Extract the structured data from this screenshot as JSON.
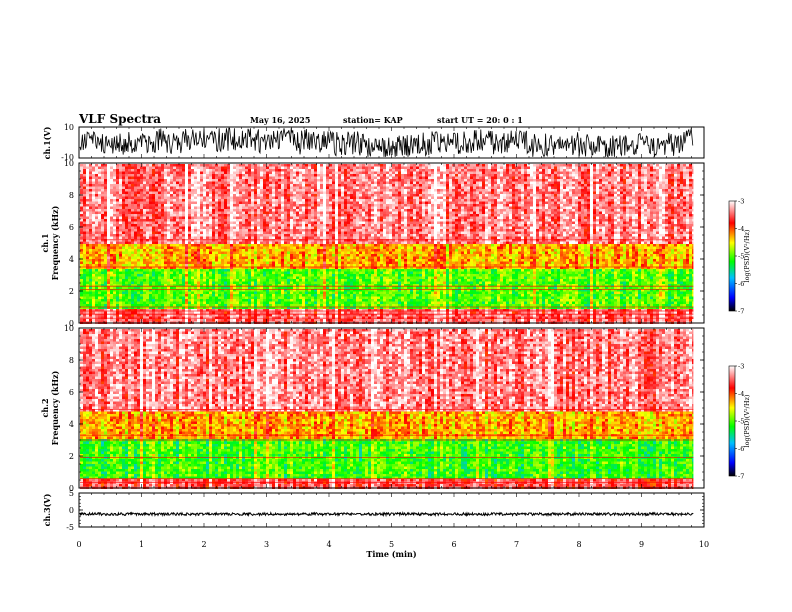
{
  "header": {
    "title": "VLF Spectra",
    "date": "May 16, 2025",
    "station": "station= KAP",
    "start": "start  UT =   20: 0  : 1"
  },
  "chart_data": [
    {
      "type": "line",
      "name": "ch1-waveform",
      "ylabel": "ch.1(V)",
      "ylim": [
        -10,
        10
      ],
      "y_ticks": [
        10,
        -10
      ],
      "x_range_min": [
        0,
        9.83
      ],
      "summary": "dense noisy waveform spanning roughly -9 to +9 V"
    },
    {
      "type": "heatmap",
      "name": "ch1-spectrogram",
      "ylabel_line1": "ch.1",
      "ylabel_line2": "Frequency (kHz)",
      "ylim": [
        0,
        10
      ],
      "y_ticks": [
        "0",
        "2",
        "4",
        "6",
        "8",
        "10"
      ],
      "x_range_min": [
        0,
        9.83
      ],
      "colorbar": {
        "label": "log(PSD)(V²/Hz)",
        "ticks": [
          "-3",
          "-4",
          "-5",
          "-6",
          "-7"
        ],
        "range": [
          -7,
          -3
        ]
      },
      "bands_khz": [
        {
          "from": 0,
          "to": 1.0,
          "level": -3.5
        },
        {
          "from": 1.0,
          "to": 3.5,
          "level": -5.0
        },
        {
          "from": 3.5,
          "to": 5.0,
          "level": -4.3
        },
        {
          "from": 5.0,
          "to": 10,
          "level": -3.4
        }
      ],
      "lines_khz": [
        0.3,
        0.55,
        0.75,
        1.0,
        2.1,
        2.3,
        3.5,
        5.2
      ]
    },
    {
      "type": "heatmap",
      "name": "ch2-spectrogram",
      "ylabel_line1": "ch.2",
      "ylabel_line2": "Frequency (kHz)",
      "ylim": [
        0,
        10
      ],
      "y_ticks": [
        "0",
        "2",
        "4",
        "6",
        "8",
        "10"
      ],
      "x_range_min": [
        0,
        9.83
      ],
      "colorbar": {
        "label": "log(PSD)(V²/Hz)",
        "ticks": [
          "-3",
          "-4",
          "-5",
          "-6",
          "-7"
        ],
        "range": [
          -7,
          -3
        ]
      },
      "bands_khz": [
        {
          "from": 0,
          "to": 0.6,
          "level": -3.6
        },
        {
          "from": 0.6,
          "to": 3.2,
          "level": -5.1
        },
        {
          "from": 3.2,
          "to": 4.8,
          "level": -4.3
        },
        {
          "from": 4.8,
          "to": 10,
          "level": -3.4
        }
      ],
      "lines_khz": [
        0.35,
        0.6,
        1.9,
        3.0,
        3.3,
        4.9
      ]
    },
    {
      "type": "line",
      "name": "ch3-waveform",
      "ylabel": "ch.3(V)",
      "ylim": [
        -5,
        5
      ],
      "y_ticks": [
        5,
        0,
        -5
      ],
      "x_range_min": [
        0,
        9.83
      ],
      "level": -1.2,
      "amplitude": 0.4
    }
  ],
  "xaxis": {
    "label": "Time (min)",
    "range": [
      0,
      10
    ],
    "ticks": [
      "0",
      "1",
      "2",
      "3",
      "4",
      "5",
      "6",
      "7",
      "8",
      "9",
      "10"
    ]
  }
}
